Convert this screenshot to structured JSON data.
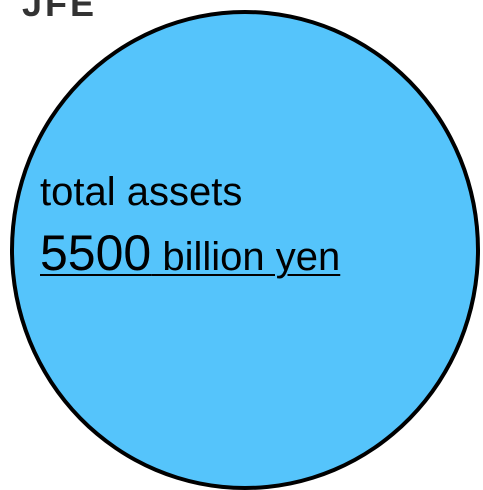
{
  "header": {
    "label": "JFE"
  },
  "diagram": {
    "fill_color": "#55c4fb",
    "outline_color": "#000000",
    "label": "total assets",
    "value": "5500",
    "unit": " billion yen"
  }
}
